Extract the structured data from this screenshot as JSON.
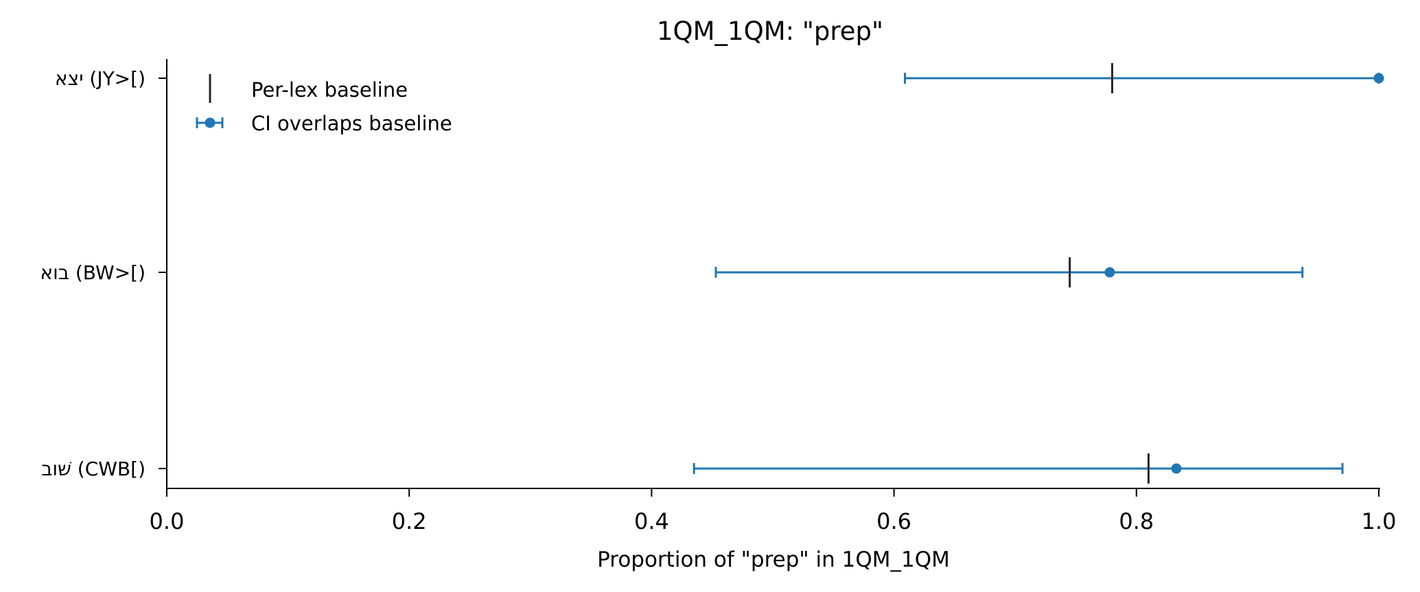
{
  "chart_data": {
    "type": "scatter",
    "title": "1QM_1QM: \"prep\"",
    "xlabel": "Proportion of \"prep\" in 1QM_1QM",
    "ylabel": "",
    "xlim": [
      0.0,
      1.0
    ],
    "x_ticks": [
      "0.0",
      "0.2",
      "0.4",
      "0.6",
      "0.8",
      "1.0"
    ],
    "categories": [
      "יצא (JY>[)",
      "בוא (BW>[)",
      "שׁוב (CWB[)"
    ],
    "series": [
      {
        "name": "CI overlaps baseline",
        "values": [
          1.0,
          0.778,
          0.833
        ],
        "ci_low": [
          0.609,
          0.453,
          0.435
        ],
        "ci_high": [
          1.0,
          0.937,
          0.97
        ]
      }
    ],
    "baseline": {
      "name": "Per-lex baseline",
      "values": [
        0.78,
        0.745,
        0.81
      ]
    },
    "legend_position": "top-left",
    "grid": false,
    "colors": {
      "point": "#1f77b4",
      "baseline": "#262626",
      "axis": "#000000"
    }
  }
}
